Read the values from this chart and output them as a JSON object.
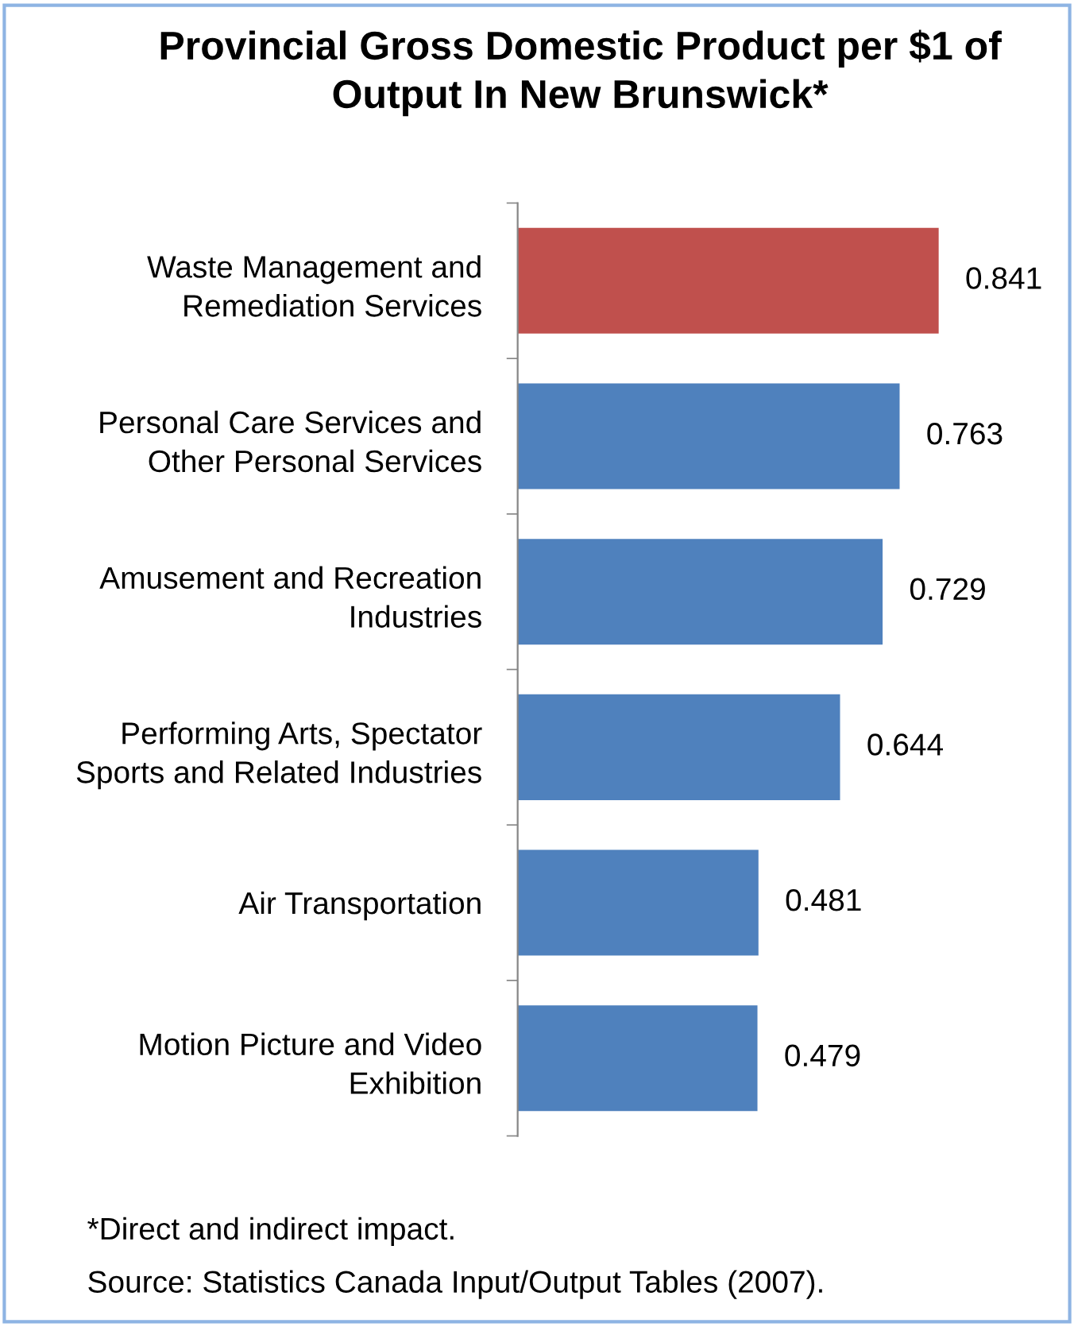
{
  "chart_data": {
    "type": "bar",
    "orientation": "horizontal",
    "title": "Provincial Gross Domestic Product per $1 of\nOutput In New Brunswick*",
    "categories": [
      "Waste Management and\nRemediation Services",
      "Personal Care Services and\nOther Personal Services",
      "Amusement and Recreation\nIndustries",
      "Performing Arts, Spectator\nSports and Related Industries",
      "Air Transportation",
      "Motion Picture and Video\nExhibition"
    ],
    "values": [
      0.841,
      0.763,
      0.729,
      0.644,
      0.481,
      0.479
    ],
    "colors": [
      "#c0504d",
      "#4f81bd",
      "#4f81bd",
      "#4f81bd",
      "#4f81bd",
      "#4f81bd"
    ],
    "data_labels": true,
    "grid": false,
    "legend": false,
    "annotations": [
      "*Direct and indirect impact.",
      "Source: Statistics Canada Input/Output Tables (2007)."
    ]
  }
}
